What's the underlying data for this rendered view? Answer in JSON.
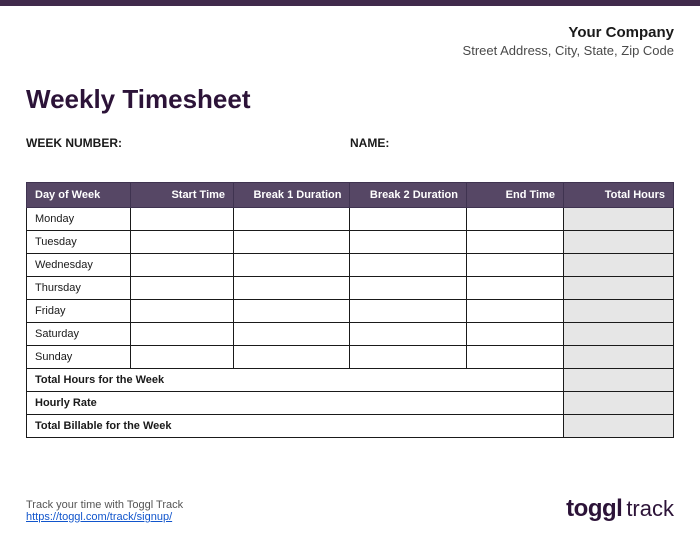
{
  "colors": {
    "top_bar": "#412a4c",
    "header_bg": "#564765",
    "header_border": "#3f3350",
    "cell_border": "#1a1a1a",
    "shaded_col": "#e6e6e6",
    "title": "#2c1338",
    "link": "#1155cc",
    "background": "#ffffff"
  },
  "company": {
    "name": "Your Company",
    "address": "Street Address, City, State, Zip Code"
  },
  "title": "Weekly Timesheet",
  "meta": {
    "week_label": "WEEK NUMBER:",
    "name_label": "NAME:"
  },
  "table": {
    "columns": [
      "Day of Week",
      "Start Time",
      "Break 1 Duration",
      "Break 2 Duration",
      "End Time",
      "Total Hours"
    ],
    "days": [
      "Monday",
      "Tuesday",
      "Wednesday",
      "Thursday",
      "Friday",
      "Saturday",
      "Sunday"
    ],
    "summary": {
      "total_week": "Total Hours for the Week",
      "hourly_rate": "Hourly Rate",
      "total_billable": "Total Billable for the Week"
    }
  },
  "footer": {
    "tagline": "Track your time with Toggl Track",
    "link_text": "https://toggl.com/track/signup/",
    "logo_bold": "toggl",
    "logo_light": "track"
  }
}
